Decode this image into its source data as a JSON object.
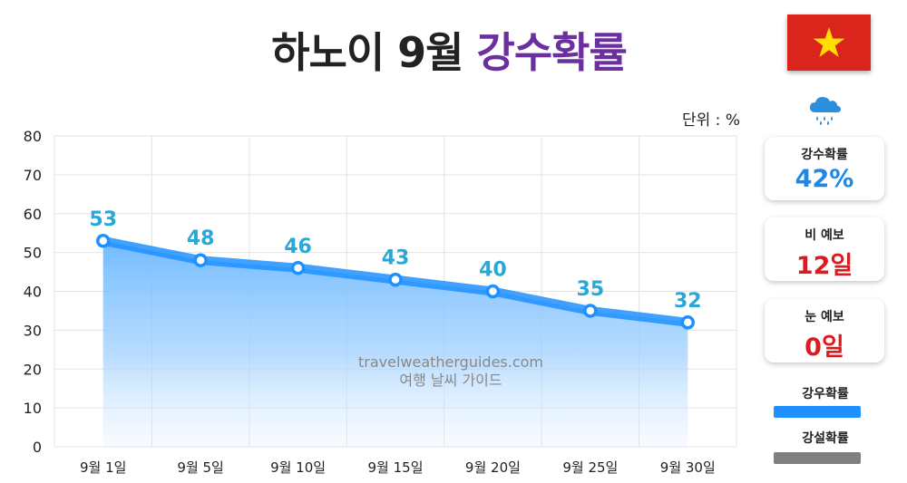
{
  "header": {
    "title_main": "하노이 9월",
    "title_accent": "강수확률",
    "unit": "단위 : %"
  },
  "flag": {
    "name": "vietnam-flag",
    "bg": "#da251d",
    "star": "#ffde00"
  },
  "summary": {
    "rain_prob_label": "강수확률",
    "rain_prob_value": "42%",
    "rain_days_label": "비 예보",
    "rain_days_value": "12일",
    "snow_days_label": "눈 예보",
    "snow_days_value": "0일"
  },
  "legend": {
    "rain_label": "강우확률",
    "rain_color": "#1e90ff",
    "snow_label": "강설확률",
    "snow_color": "#808080"
  },
  "watermark": {
    "line1": "travelweatherguides.com",
    "line2": "여행 날씨 가이드"
  },
  "chart_data": {
    "type": "area",
    "title": "하노이 9월 강수확률",
    "unit": "%",
    "categories": [
      "9월 1일",
      "9월 5일",
      "9월 10일",
      "9월 15일",
      "9월 20일",
      "9월 25일",
      "9월 30일"
    ],
    "series": [
      {
        "name": "강우확률",
        "values": [
          53,
          48,
          46,
          43,
          40,
          35,
          32
        ],
        "color": "#1e90ff"
      }
    ],
    "ylim": [
      0,
      80
    ],
    "yticks": [
      0,
      10,
      20,
      30,
      40,
      50,
      60,
      70,
      80
    ],
    "grid": true
  }
}
